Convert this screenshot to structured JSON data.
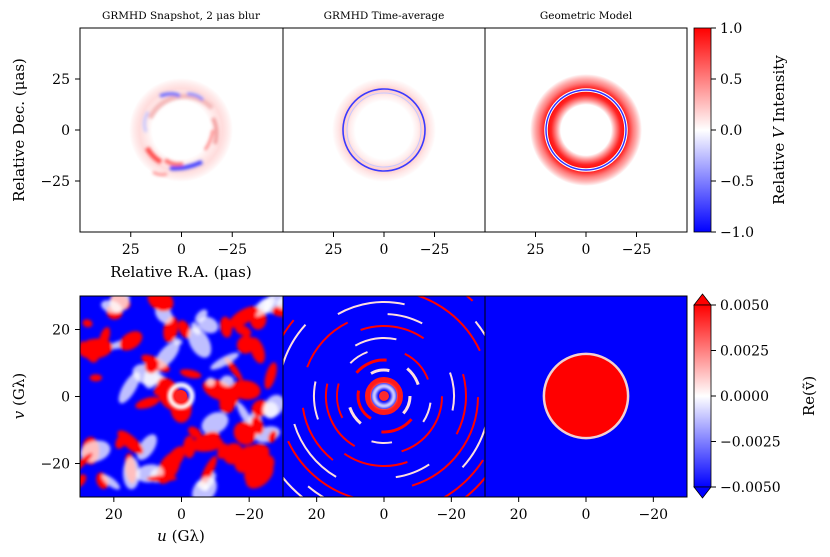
{
  "chart_data": [
    {
      "type": "heatmap",
      "row": "image-domain",
      "panels": [
        {
          "title": "GRMHD Snapshot, 2 μas blur",
          "description": "snapshot"
        },
        {
          "title": "GRMHD Time-average",
          "description": "time-average"
        },
        {
          "title": "Geometric Model",
          "description": "model"
        }
      ],
      "xlabel": "Relative R.A. (μas)",
      "ylabel": "Relative Dec. (μas)",
      "xlim": [
        50,
        -50
      ],
      "ylim": [
        -50,
        50
      ],
      "xticks": [
        25,
        0,
        -25
      ],
      "xtick_labels": [
        "25",
        "0",
        "−25"
      ],
      "yticks": [
        25,
        0,
        -25
      ],
      "ytick_labels": [
        "25",
        "0",
        "−25"
      ],
      "ring_radius": 20,
      "colorbar": {
        "label_prefix": "Relative ",
        "label_var": "V",
        "label_suffix": " Intensity",
        "range": [
          -1.0,
          1.0
        ],
        "ticks": [
          1.0,
          0.5,
          0.0,
          -0.5,
          -1.0
        ],
        "tick_labels": [
          "1.0",
          "0.5",
          "0.0",
          "−0.5",
          "−1.0"
        ],
        "colormap": "bwr"
      }
    },
    {
      "type": "heatmap",
      "row": "visibility-domain",
      "panels": [
        {
          "description": "snapshot"
        },
        {
          "description": "time-average"
        },
        {
          "description": "model"
        }
      ],
      "xlabel_var": "u",
      "xlabel_unit": " (Gλ)",
      "ylabel_var": "v",
      "ylabel_unit": " (Gλ)",
      "xlim": [
        30,
        -30
      ],
      "ylim": [
        -30,
        30
      ],
      "xticks": [
        20,
        0,
        -20
      ],
      "xtick_labels": [
        "20",
        "0",
        "−20"
      ],
      "yticks": [
        20,
        0,
        -20
      ],
      "ytick_labels": [
        "20",
        "0",
        "−20"
      ],
      "model_disk_radius": 12.5,
      "colorbar": {
        "label": "Re(ṽ)",
        "range": [
          -0.005,
          0.005
        ],
        "ticks": [
          0.005,
          0.0025,
          0.0,
          -0.0025,
          -0.005
        ],
        "tick_labels": [
          "0.0050",
          "0.0025",
          "0.0000",
          "−0.0025",
          "−0.0050"
        ],
        "colormap": "bwr",
        "extend": "both"
      }
    }
  ],
  "colors": {
    "red": "#ff0000",
    "blue": "#0000ff",
    "white": "#ffffff",
    "frame": "#000000"
  }
}
